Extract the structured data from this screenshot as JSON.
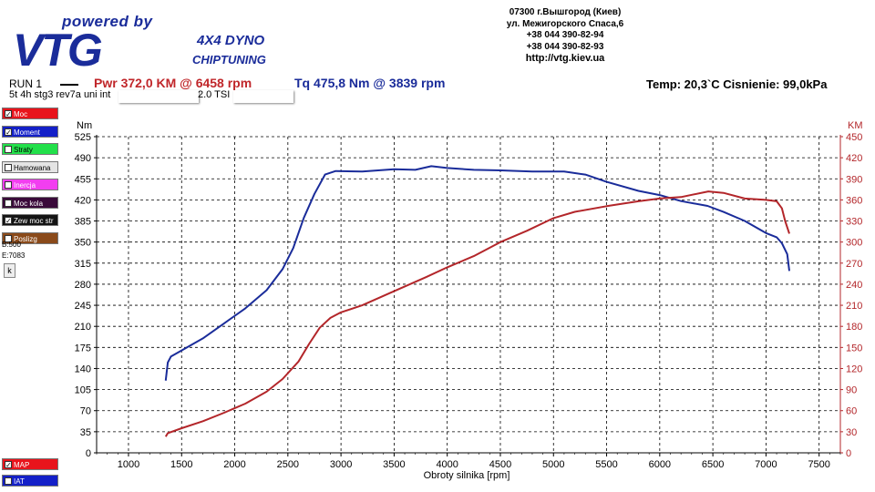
{
  "header": {
    "logo_powered": "powered by",
    "logo_vtg": "VTG",
    "logo_line1": "4X4 DYNO",
    "logo_line2": "CHIPTUNING",
    "address": [
      "07300 г.Вышгород (Киев)",
      "ул. Межигорского Спаса,6",
      "+38 044 390-82-94",
      "+38 044 390-82-93"
    ],
    "url": "http://vtg.kiev.ua"
  },
  "run": {
    "label": "RUN 1",
    "power": "Pwr  372,0 KM @ 6458 rpm",
    "torque": "Tq 475,8 Nm @ 3839 rpm",
    "conditions": "Temp: 20,3`C   Cisnienie: 99,0kPa",
    "description": "5t 4h stg3 rev7a uni int",
    "engine": "2.0 TSI"
  },
  "legend": [
    {
      "label": "Moc",
      "color": "#e8141c",
      "checked": true
    },
    {
      "label": "Moment",
      "color": "#1420c8",
      "checked": true
    },
    {
      "label": "Straty",
      "color": "#22e04a",
      "checked": false
    },
    {
      "label": "Hamowana",
      "color": "#e4e4e4",
      "checked": false
    },
    {
      "label": "Inercja",
      "color": "#f23ef0",
      "checked": false
    },
    {
      "label": "Moc kola",
      "color": "#3a0a3a",
      "checked": false
    },
    {
      "label": "Zew moc str",
      "color": "#141414",
      "checked": true
    },
    {
      "label": "Poslizg",
      "color": "#8a4a1a",
      "checked": false
    }
  ],
  "range": {
    "begin": "B:500",
    "end": "E:7083",
    "button": "k"
  },
  "legend_bottom": [
    {
      "label": "MAP",
      "color": "#e8141c",
      "checked": true
    },
    {
      "label": "IAT",
      "color": "#1420c8",
      "checked": false
    }
  ],
  "chart_data": {
    "type": "line",
    "xlabel": "Obroty silnika [rpm]",
    "ylabel_left": "Nm",
    "ylabel_right": "KM",
    "xlim": [
      700,
      7700
    ],
    "ylim_left": [
      0,
      525
    ],
    "ylim_right": [
      0,
      450
    ],
    "x_ticks": [
      1000,
      1500,
      2000,
      2500,
      3000,
      3500,
      4000,
      4500,
      5000,
      5500,
      6000,
      6500,
      7000,
      7500
    ],
    "y_ticks_left": [
      0,
      35,
      70,
      105,
      140,
      175,
      210,
      245,
      280,
      315,
      350,
      385,
      420,
      455,
      490,
      525
    ],
    "y_ticks_right": [
      0,
      30,
      60,
      90,
      120,
      150,
      180,
      210,
      240,
      270,
      300,
      330,
      360,
      390,
      420,
      450
    ],
    "grid": true,
    "series": [
      {
        "name": "Moment",
        "axis": "left",
        "color": "#1a2c9a",
        "points": [
          [
            1350,
            120
          ],
          [
            1370,
            150
          ],
          [
            1400,
            160
          ],
          [
            1500,
            170
          ],
          [
            1700,
            190
          ],
          [
            1900,
            215
          ],
          [
            2100,
            240
          ],
          [
            2300,
            270
          ],
          [
            2450,
            305
          ],
          [
            2550,
            340
          ],
          [
            2650,
            390
          ],
          [
            2750,
            430
          ],
          [
            2850,
            462
          ],
          [
            2950,
            468
          ],
          [
            3200,
            467
          ],
          [
            3500,
            471
          ],
          [
            3700,
            470
          ],
          [
            3850,
            476
          ],
          [
            4000,
            473
          ],
          [
            4250,
            470
          ],
          [
            4500,
            469
          ],
          [
            4800,
            467
          ],
          [
            5100,
            467
          ],
          [
            5300,
            462
          ],
          [
            5500,
            450
          ],
          [
            5800,
            435
          ],
          [
            6000,
            428
          ],
          [
            6200,
            418
          ],
          [
            6450,
            410
          ],
          [
            6600,
            400
          ],
          [
            6800,
            385
          ],
          [
            7000,
            365
          ],
          [
            7100,
            358
          ],
          [
            7150,
            348
          ],
          [
            7200,
            330
          ],
          [
            7220,
            302
          ]
        ]
      },
      {
        "name": "Moc",
        "axis": "right",
        "color": "#b3262a",
        "points": [
          [
            1350,
            23
          ],
          [
            1370,
            28
          ],
          [
            1500,
            35
          ],
          [
            1700,
            45
          ],
          [
            1900,
            57
          ],
          [
            2100,
            70
          ],
          [
            2300,
            87
          ],
          [
            2450,
            105
          ],
          [
            2600,
            130
          ],
          [
            2700,
            155
          ],
          [
            2800,
            178
          ],
          [
            2900,
            192
          ],
          [
            3000,
            200
          ],
          [
            3200,
            210
          ],
          [
            3500,
            230
          ],
          [
            3800,
            250
          ],
          [
            4000,
            264
          ],
          [
            4250,
            280
          ],
          [
            4500,
            300
          ],
          [
            4750,
            316
          ],
          [
            5000,
            334
          ],
          [
            5200,
            343
          ],
          [
            5500,
            351
          ],
          [
            5800,
            358
          ],
          [
            6000,
            362
          ],
          [
            6200,
            364
          ],
          [
            6458,
            372
          ],
          [
            6600,
            370
          ],
          [
            6800,
            362
          ],
          [
            7000,
            360
          ],
          [
            7100,
            358
          ],
          [
            7150,
            348
          ],
          [
            7180,
            330
          ],
          [
            7220,
            312
          ]
        ]
      }
    ]
  }
}
